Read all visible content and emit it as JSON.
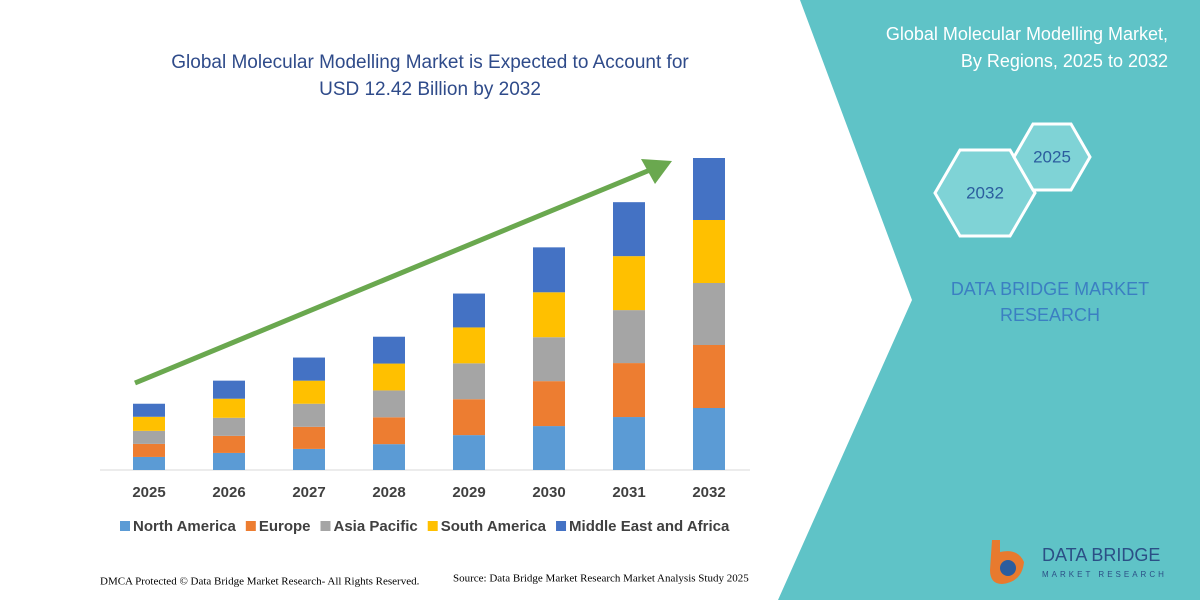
{
  "chart_data": {
    "type": "stacked_bar",
    "title_lines": [
      "Global Molecular Modelling Market is Expected to Account for",
      "USD 12.42 Billion by 2032"
    ],
    "categories": [
      "2025",
      "2026",
      "2027",
      "2028",
      "2029",
      "2030",
      "2031",
      "2032"
    ],
    "series": [
      {
        "name": "North America",
        "color": "#5b9bd5",
        "values": [
          0.52,
          0.68,
          0.84,
          1.03,
          1.39,
          1.75,
          2.11,
          2.47
        ]
      },
      {
        "name": "Europe",
        "color": "#ed7d31",
        "values": [
          0.52,
          0.68,
          0.88,
          1.07,
          1.43,
          1.79,
          2.15,
          2.51
        ]
      },
      {
        "name": "Asia Pacific",
        "color": "#a5a5a5",
        "values": [
          0.52,
          0.72,
          0.92,
          1.07,
          1.43,
          1.75,
          2.11,
          2.47
        ]
      },
      {
        "name": "South America",
        "color": "#ffc000",
        "values": [
          0.56,
          0.76,
          0.92,
          1.07,
          1.43,
          1.79,
          2.15,
          2.51
        ]
      },
      {
        "name": "Middle East and Africa",
        "color": "#4472c4",
        "values": [
          0.52,
          0.72,
          0.92,
          1.07,
          1.35,
          1.79,
          2.15,
          2.47
        ]
      }
    ],
    "legend": "bottom"
  },
  "panel": {
    "title_lines": [
      "Global Molecular Modelling Market,",
      "By Regions, 2025 to 2032"
    ],
    "hexagons": [
      "2032",
      "2025"
    ],
    "brand_lines": [
      "DATA BRIDGE MARKET",
      "RESEARCH"
    ]
  },
  "logo": {
    "name": "DATA BRIDGE",
    "tagline": "MARKET RESEARCH"
  },
  "footer": {
    "rights": "DMCA Protected © Data Bridge Market Research- All Rights Reserved.",
    "source": "Source: Data Bridge Market Research Market Analysis Study 2025"
  }
}
